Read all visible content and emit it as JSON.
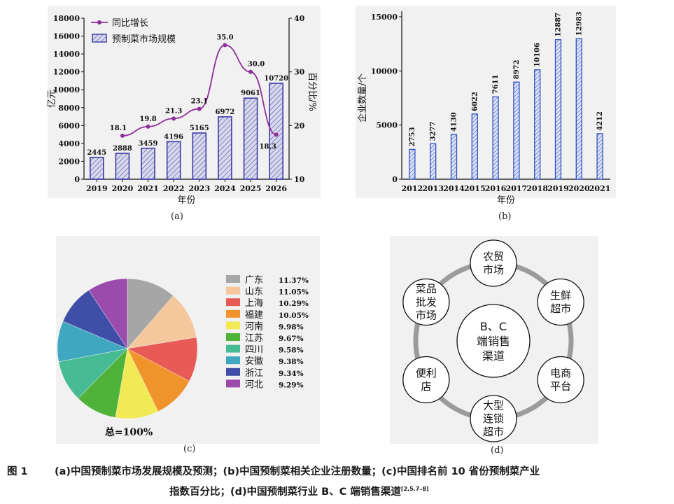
{
  "charts": [
    {
      "type": "bar+line",
      "sublabel": "(a)",
      "categories": [
        "2019",
        "2020",
        "2021",
        "2022",
        "2023",
        "2024",
        "2025",
        "2026"
      ],
      "xlabel": "年份",
      "ylabel_left": "亿元",
      "ylabel_right": "百分比/%",
      "left_ticks": [
        0,
        2000,
        4000,
        6000,
        8000,
        10000,
        12000,
        14000,
        16000,
        18000
      ],
      "right_ticks": [
        10,
        20,
        30,
        40
      ],
      "ylim_left": [
        0,
        18000
      ],
      "ylim_right": [
        10,
        40
      ],
      "legend": {
        "line_name": "同比增长",
        "bar_name": "预制菜市场规模"
      },
      "bar_values": [
        2445,
        2888,
        3459,
        4196,
        5165,
        6972,
        9061,
        10720
      ],
      "bar_labels": [
        "2445",
        "2888",
        "3459",
        "4196",
        "5165",
        "6972",
        "9061",
        "10720"
      ],
      "line_values": [
        null,
        18.1,
        19.8,
        21.3,
        23.1,
        35.0,
        30.0,
        18.3
      ],
      "line_labels": [
        "",
        "18.1",
        "19.8",
        "21.3",
        "23.1",
        "35.0",
        "30.0",
        "18.3"
      ],
      "colors": {
        "bar_fill": "#d9d9ec",
        "bar_edge": "#3b3ba6",
        "line": "#8e2f9a"
      }
    },
    {
      "type": "bar",
      "sublabel": "(b)",
      "categories": [
        "2012",
        "2013",
        "2014",
        "2015",
        "2016",
        "2017",
        "2018",
        "2019",
        "2020",
        "2021"
      ],
      "xlabel": "年份",
      "ylabel": "企业数量/个",
      "ticks": [
        0,
        5000,
        10000,
        15000
      ],
      "ylim": [
        0,
        15000
      ],
      "values": [
        2753,
        3277,
        4130,
        6022,
        7611,
        8972,
        10106,
        12887,
        12983,
        4212
      ],
      "value_labels": [
        "2753",
        "3277",
        "4130",
        "6022",
        "7611",
        "8972",
        "10106",
        "12887",
        "12983",
        "4212"
      ],
      "colors": {
        "bar_fill": "#dfe4f5",
        "bar_edge": "#2f52c2"
      }
    },
    {
      "type": "pie",
      "sublabel": "(c)",
      "labels": [
        "广东",
        "山东",
        "上海",
        "福建",
        "河南",
        "江苏",
        "四川",
        "安徽",
        "浙江",
        "河北"
      ],
      "values": [
        11.37,
        11.05,
        10.29,
        10.05,
        9.98,
        9.67,
        9.58,
        9.38,
        9.34,
        9.29
      ],
      "value_labels": [
        "11.37%",
        "11.05%",
        "10.29%",
        "10.05%",
        "9.98%",
        "9.67%",
        "9.58%",
        "9.38%",
        "9.34%",
        "9.29%"
      ],
      "colors": [
        "#a6a6a6",
        "#f4c79d",
        "#e85a56",
        "#f0932b",
        "#f2ea55",
        "#4fb33a",
        "#47bb94",
        "#3fa7c0",
        "#3f4fa8",
        "#9a4bab"
      ],
      "total_label": "总=100%"
    }
  ],
  "diagram_d": {
    "sublabel": "(d)",
    "center_lines": [
      "B、C",
      "端销售",
      "渠道"
    ],
    "nodes": [
      {
        "lines": [
          "农贸",
          "市场"
        ]
      },
      {
        "lines": [
          "生鲜",
          "超市"
        ]
      },
      {
        "lines": [
          "电商",
          "平台"
        ]
      },
      {
        "lines": [
          "大型",
          "连锁",
          "超市"
        ]
      },
      {
        "lines": [
          "便利",
          "店"
        ]
      },
      {
        "lines": [
          "菜品",
          "批发",
          "市场"
        ]
      }
    ]
  },
  "caption": {
    "fig": "图 1",
    "line1": "(a)中国预制菜市场发展规模及预测；(b)中国预制菜相关企业注册数量；(c)中国排名前 10 省份预制菜产业",
    "line2": "指数百分比；(d)中国预制菜行业 B、C 端销售渠道",
    "refs": "[2,5,7–8]"
  }
}
